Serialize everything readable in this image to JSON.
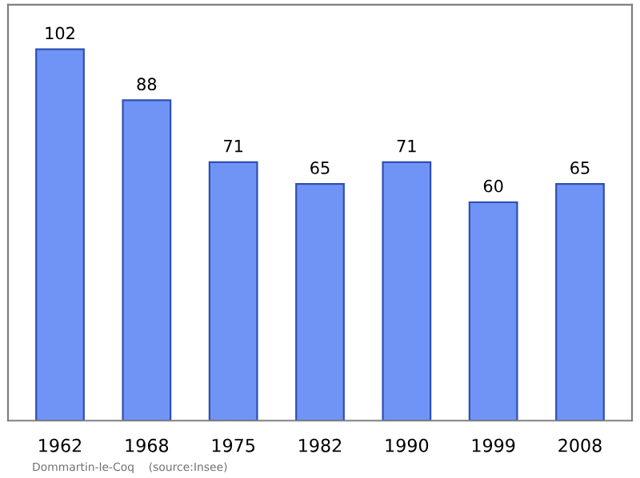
{
  "chart_data": {
    "type": "bar",
    "categories": [
      "1962",
      "1968",
      "1975",
      "1982",
      "1990",
      "1999",
      "2008"
    ],
    "values": [
      102,
      88,
      71,
      65,
      71,
      60,
      65
    ],
    "color": "#7094f6",
    "data_labels": true,
    "grid": false,
    "annotations": [
      "Dommartin-le-Coq    (source:Insee)"
    ]
  }
}
